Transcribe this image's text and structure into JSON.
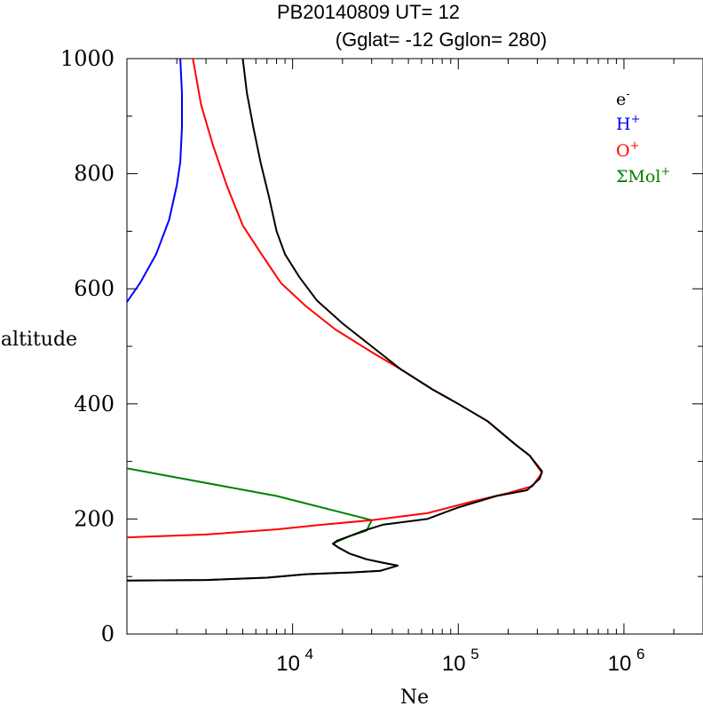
{
  "chart_data": {
    "type": "line",
    "title_line1": "PB20140809   UT=  12",
    "title_line2": "(Gglat= -12   Gglon=  280)",
    "xlabel": "Ne",
    "ylabel": "altitude",
    "xscale": "log",
    "xlim": [
      1000,
      3000000
    ],
    "ylim": [
      0,
      1000
    ],
    "x_ticks": [
      {
        "value": 10000,
        "base": "10",
        "exp": "4"
      },
      {
        "value": 100000,
        "base": "10",
        "exp": "5"
      },
      {
        "value": 1000000,
        "base": "10",
        "exp": "6"
      }
    ],
    "y_ticks": [
      "0",
      "200",
      "400",
      "600",
      "800",
      "1000"
    ],
    "legend_position": "top-right",
    "series": [
      {
        "key": "e",
        "label_base": "e",
        "label_sup": "-",
        "color": "#000000",
        "points": [
          [
            1000,
            93
          ],
          [
            3000,
            94
          ],
          [
            7000,
            98
          ],
          [
            12000,
            104
          ],
          [
            22000,
            107
          ],
          [
            34000,
            110
          ],
          [
            43000,
            119
          ],
          [
            35000,
            124
          ],
          [
            28000,
            130
          ],
          [
            22000,
            140
          ],
          [
            19000,
            150
          ],
          [
            17500,
            157
          ],
          [
            18500,
            162
          ],
          [
            22000,
            170
          ],
          [
            27000,
            180
          ],
          [
            35000,
            190
          ],
          [
            65000,
            200
          ],
          [
            100000,
            220
          ],
          [
            170000,
            240
          ],
          [
            260000,
            250
          ],
          [
            310000,
            270
          ],
          [
            320000,
            283
          ],
          [
            270000,
            310
          ],
          [
            220000,
            330
          ],
          [
            150000,
            370
          ],
          [
            100000,
            400
          ],
          [
            70000,
            425
          ],
          [
            45000,
            460
          ],
          [
            30000,
            500
          ],
          [
            20000,
            540
          ],
          [
            14000,
            580
          ],
          [
            11000,
            620
          ],
          [
            9000,
            660
          ],
          [
            8000,
            700
          ],
          [
            7200,
            760
          ],
          [
            6400,
            820
          ],
          [
            5800,
            880
          ],
          [
            5300,
            940
          ],
          [
            5000,
            1000
          ]
        ]
      },
      {
        "key": "h",
        "label_base": "H",
        "label_sup": "+",
        "color": "#0000ff",
        "points": [
          [
            1000,
            577
          ],
          [
            1200,
            610
          ],
          [
            1500,
            660
          ],
          [
            1800,
            720
          ],
          [
            2000,
            780
          ],
          [
            2100,
            820
          ],
          [
            2150,
            880
          ],
          [
            2150,
            940
          ],
          [
            2100,
            1000
          ]
        ]
      },
      {
        "key": "o",
        "label_base": "O",
        "label_sup": "+",
        "color": "#ff0000",
        "points": [
          [
            1000,
            168
          ],
          [
            3000,
            173
          ],
          [
            8000,
            182
          ],
          [
            15000,
            190
          ],
          [
            30000,
            198
          ],
          [
            65000,
            210
          ],
          [
            120000,
            230
          ],
          [
            200000,
            245
          ],
          [
            280000,
            257
          ],
          [
            320000,
            280
          ],
          [
            270000,
            310
          ],
          [
            220000,
            330
          ],
          [
            150000,
            370
          ],
          [
            100000,
            400
          ],
          [
            70000,
            425
          ],
          [
            45000,
            460
          ],
          [
            30000,
            490
          ],
          [
            18000,
            530
          ],
          [
            12000,
            570
          ],
          [
            8500,
            610
          ],
          [
            6500,
            660
          ],
          [
            5000,
            710
          ],
          [
            4000,
            780
          ],
          [
            3300,
            850
          ],
          [
            2800,
            920
          ],
          [
            2500,
            1000
          ]
        ]
      },
      {
        "key": "mol",
        "label_base": "ΣMol",
        "label_sup": "+",
        "color": "#008000",
        "points": [
          [
            1000,
            288
          ],
          [
            8000,
            240
          ],
          [
            30000,
            198
          ],
          [
            28000,
            180
          ],
          [
            22000,
            170
          ],
          [
            19000,
            162
          ],
          [
            17500,
            157
          ],
          [
            19000,
            150
          ],
          [
            22000,
            140
          ],
          [
            28000,
            130
          ],
          [
            35000,
            124
          ],
          [
            43000,
            119
          ],
          [
            34000,
            110
          ],
          [
            22000,
            107
          ],
          [
            12000,
            104
          ],
          [
            7000,
            98
          ],
          [
            3000,
            94
          ],
          [
            1000,
            93
          ]
        ]
      }
    ]
  }
}
